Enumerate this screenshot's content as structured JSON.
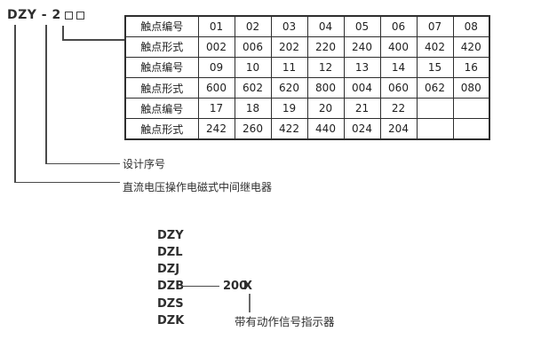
{
  "model_header": {
    "prefix": "DZY - 2",
    "placeholder_symbol": "□□"
  },
  "contact_table": {
    "rows": [
      {
        "label": "触点编号",
        "values": [
          "01",
          "02",
          "03",
          "04",
          "05",
          "06",
          "07",
          "08"
        ]
      },
      {
        "label": "触点形式",
        "values": [
          "002",
          "006",
          "202",
          "220",
          "240",
          "400",
          "402",
          "420"
        ]
      },
      {
        "label": "触点编号",
        "values": [
          "09",
          "10",
          "11",
          "12",
          "13",
          "14",
          "15",
          "16"
        ]
      },
      {
        "label": "触点形式",
        "values": [
          "600",
          "602",
          "620",
          "800",
          "004",
          "060",
          "062",
          "080"
        ]
      },
      {
        "label": "触点编号",
        "values": [
          "17",
          "18",
          "19",
          "20",
          "21",
          "22",
          "",
          ""
        ]
      },
      {
        "label": "触点形式",
        "values": [
          "242",
          "260",
          "422",
          "440",
          "024",
          "204",
          "",
          ""
        ]
      }
    ]
  },
  "callouts": {
    "design_serial_label": "设计序号",
    "relay_type_label": "直流电压操作电磁式中间继电器"
  },
  "model_series": {
    "items": [
      "DZY",
      "DZL",
      "DZJ",
      "DZB",
      "DZS",
      "DZK"
    ],
    "dzb_code": "200",
    "dzb_variant": "X",
    "variant_note": "带有动作信号指示器"
  },
  "colors": {
    "text": "#2e2e2e",
    "table_border": "#2e2e2e",
    "connector_line": "#4a4a4a",
    "background": "#ffffff"
  }
}
